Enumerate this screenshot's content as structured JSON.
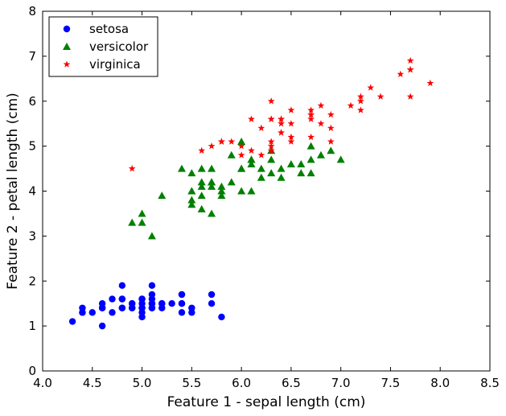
{
  "chart_data": {
    "type": "scatter",
    "title": "",
    "xlabel": "Feature 1 - sepal length (cm)",
    "ylabel": "Feature 2 - petal length (cm)",
    "xlim": [
      4.0,
      8.5
    ],
    "ylim": [
      0,
      8
    ],
    "xticks": [
      "4.0",
      "4.5",
      "5.0",
      "5.5",
      "6.0",
      "6.5",
      "7.0",
      "7.5",
      "8.0",
      "8.5"
    ],
    "yticks": [
      "0",
      "1",
      "2",
      "3",
      "4",
      "5",
      "6",
      "7",
      "8"
    ],
    "grid": false,
    "legend_position": "top-left",
    "series": [
      {
        "name": "setosa",
        "color": "#0000ff",
        "marker": "circle",
        "points": [
          [
            5.1,
            1.4
          ],
          [
            4.9,
            1.4
          ],
          [
            4.7,
            1.3
          ],
          [
            4.6,
            1.5
          ],
          [
            5.0,
            1.4
          ],
          [
            5.4,
            1.7
          ],
          [
            4.6,
            1.4
          ],
          [
            5.0,
            1.5
          ],
          [
            4.4,
            1.4
          ],
          [
            4.9,
            1.5
          ],
          [
            5.4,
            1.5
          ],
          [
            4.8,
            1.6
          ],
          [
            4.8,
            1.4
          ],
          [
            4.3,
            1.1
          ],
          [
            5.8,
            1.2
          ],
          [
            5.7,
            1.5
          ],
          [
            5.4,
            1.3
          ],
          [
            5.1,
            1.4
          ],
          [
            5.7,
            1.7
          ],
          [
            5.1,
            1.5
          ],
          [
            5.4,
            1.7
          ],
          [
            5.1,
            1.5
          ],
          [
            4.6,
            1.0
          ],
          [
            5.1,
            1.7
          ],
          [
            4.8,
            1.9
          ],
          [
            5.0,
            1.6
          ],
          [
            5.0,
            1.6
          ],
          [
            5.2,
            1.5
          ],
          [
            5.2,
            1.4
          ],
          [
            4.7,
            1.6
          ],
          [
            4.8,
            1.6
          ],
          [
            5.4,
            1.5
          ],
          [
            5.2,
            1.5
          ],
          [
            5.5,
            1.4
          ],
          [
            4.9,
            1.5
          ],
          [
            5.0,
            1.2
          ],
          [
            5.5,
            1.3
          ],
          [
            4.9,
            1.4
          ],
          [
            4.4,
            1.3
          ],
          [
            5.1,
            1.5
          ],
          [
            5.0,
            1.3
          ],
          [
            4.5,
            1.3
          ],
          [
            4.4,
            1.3
          ],
          [
            5.0,
            1.6
          ],
          [
            5.1,
            1.9
          ],
          [
            4.8,
            1.4
          ],
          [
            5.1,
            1.6
          ],
          [
            4.6,
            1.4
          ],
          [
            5.3,
            1.5
          ],
          [
            5.0,
            1.4
          ]
        ]
      },
      {
        "name": "versicolor",
        "color": "#008000",
        "marker": "triangle",
        "points": [
          [
            7.0,
            4.7
          ],
          [
            6.4,
            4.5
          ],
          [
            6.9,
            4.9
          ],
          [
            5.5,
            4.0
          ],
          [
            6.5,
            4.6
          ],
          [
            5.7,
            4.5
          ],
          [
            6.3,
            4.7
          ],
          [
            4.9,
            3.3
          ],
          [
            6.6,
            4.6
          ],
          [
            5.2,
            3.9
          ],
          [
            5.0,
            3.5
          ],
          [
            5.9,
            4.2
          ],
          [
            6.0,
            4.0
          ],
          [
            6.1,
            4.7
          ],
          [
            5.6,
            3.6
          ],
          [
            6.7,
            4.4
          ],
          [
            5.6,
            4.5
          ],
          [
            5.8,
            4.1
          ],
          [
            6.2,
            4.5
          ],
          [
            5.6,
            3.9
          ],
          [
            5.9,
            4.8
          ],
          [
            6.1,
            4.0
          ],
          [
            6.3,
            4.9
          ],
          [
            6.1,
            4.7
          ],
          [
            6.4,
            4.3
          ],
          [
            6.6,
            4.4
          ],
          [
            6.8,
            4.8
          ],
          [
            6.7,
            5.0
          ],
          [
            6.0,
            4.5
          ],
          [
            5.7,
            3.5
          ],
          [
            5.5,
            3.8
          ],
          [
            5.5,
            3.7
          ],
          [
            5.8,
            3.9
          ],
          [
            6.0,
            5.1
          ],
          [
            5.4,
            4.5
          ],
          [
            6.0,
            4.5
          ],
          [
            6.7,
            4.7
          ],
          [
            6.3,
            4.4
          ],
          [
            5.6,
            4.1
          ],
          [
            5.5,
            4.0
          ],
          [
            5.5,
            4.4
          ],
          [
            6.1,
            4.6
          ],
          [
            5.8,
            4.0
          ],
          [
            5.0,
            3.3
          ],
          [
            5.6,
            4.2
          ],
          [
            5.7,
            4.2
          ],
          [
            5.7,
            4.2
          ],
          [
            6.2,
            4.3
          ],
          [
            5.1,
            3.0
          ],
          [
            5.7,
            4.1
          ]
        ]
      },
      {
        "name": "virginica",
        "color": "#ff0000",
        "marker": "star",
        "points": [
          [
            6.3,
            6.0
          ],
          [
            5.8,
            5.1
          ],
          [
            7.1,
            5.9
          ],
          [
            6.3,
            5.6
          ],
          [
            6.5,
            5.8
          ],
          [
            7.6,
            6.6
          ],
          [
            4.9,
            4.5
          ],
          [
            7.3,
            6.3
          ],
          [
            6.7,
            5.8
          ],
          [
            7.2,
            6.1
          ],
          [
            6.5,
            5.1
          ],
          [
            6.4,
            5.3
          ],
          [
            6.8,
            5.5
          ],
          [
            5.7,
            5.0
          ],
          [
            5.8,
            5.1
          ],
          [
            6.4,
            5.3
          ],
          [
            6.5,
            5.5
          ],
          [
            7.7,
            6.7
          ],
          [
            7.7,
            6.9
          ],
          [
            6.0,
            5.0
          ],
          [
            6.9,
            5.7
          ],
          [
            5.6,
            4.9
          ],
          [
            7.7,
            6.7
          ],
          [
            6.3,
            4.9
          ],
          [
            6.7,
            5.7
          ],
          [
            7.2,
            6.0
          ],
          [
            6.2,
            4.8
          ],
          [
            6.1,
            4.9
          ],
          [
            6.4,
            5.6
          ],
          [
            7.2,
            5.8
          ],
          [
            7.4,
            6.1
          ],
          [
            7.9,
            6.4
          ],
          [
            6.4,
            5.6
          ],
          [
            6.3,
            5.1
          ],
          [
            6.1,
            5.6
          ],
          [
            7.7,
            6.1
          ],
          [
            6.3,
            5.6
          ],
          [
            6.4,
            5.5
          ],
          [
            6.0,
            4.8
          ],
          [
            6.9,
            5.4
          ],
          [
            6.7,
            5.6
          ],
          [
            6.9,
            5.1
          ],
          [
            5.8,
            5.1
          ],
          [
            6.8,
            5.9
          ],
          [
            6.7,
            5.7
          ],
          [
            6.7,
            5.2
          ],
          [
            6.3,
            5.0
          ],
          [
            6.5,
            5.2
          ],
          [
            6.2,
            5.4
          ],
          [
            5.9,
            5.1
          ]
        ]
      }
    ]
  }
}
